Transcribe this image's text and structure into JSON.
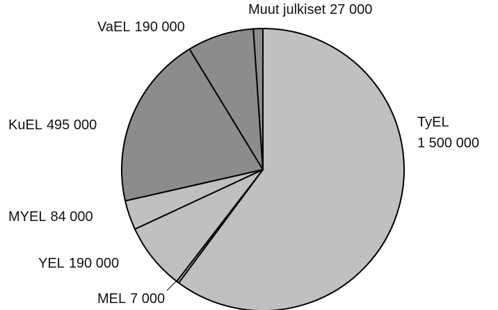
{
  "chart_data": {
    "type": "pie",
    "categories": [
      "TyEL",
      "MEL",
      "YEL",
      "MYEL",
      "KuEL",
      "VaEL",
      "Muut julkiset"
    ],
    "values": [
      1500000,
      7000,
      190000,
      84000,
      495000,
      190000,
      27000
    ],
    "value_labels": [
      "1 500 000",
      "7 000",
      "190 000",
      "84 000",
      "495 000",
      "190 000",
      "27 000"
    ],
    "colors": [
      "#c0c0c0",
      "#c0c0c0",
      "#c0c0c0",
      "#c0c0c0",
      "#8c8c8c",
      "#8c8c8c",
      "#8c8c8c"
    ]
  }
}
